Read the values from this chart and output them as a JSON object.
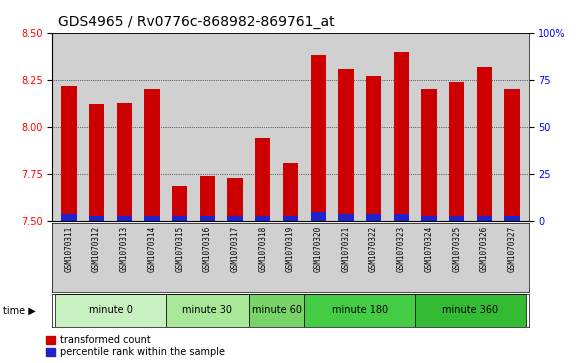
{
  "title": "GDS4965 / Rv0776c-868982-869761_at",
  "samples": [
    "GSM1070311",
    "GSM1070312",
    "GSM1070313",
    "GSM1070314",
    "GSM1070315",
    "GSM1070316",
    "GSM1070317",
    "GSM1070318",
    "GSM1070319",
    "GSM1070320",
    "GSM1070321",
    "GSM1070322",
    "GSM1070323",
    "GSM1070324",
    "GSM1070325",
    "GSM1070326",
    "GSM1070327"
  ],
  "transformed_count": [
    8.22,
    8.12,
    8.13,
    8.2,
    7.69,
    7.74,
    7.73,
    7.94,
    7.81,
    8.38,
    8.31,
    8.27,
    8.4,
    8.2,
    8.24,
    8.32,
    8.2
  ],
  "percentile_rank": [
    4,
    3,
    3,
    3,
    3,
    3,
    3,
    3,
    3,
    5,
    4,
    4,
    4,
    3,
    3,
    3,
    3
  ],
  "ylim_left": [
    7.5,
    8.5
  ],
  "ylim_right": [
    0,
    100
  ],
  "yticks_left": [
    7.5,
    7.75,
    8.0,
    8.25,
    8.5
  ],
  "yticks_right": [
    0,
    25,
    50,
    75,
    100
  ],
  "bar_color_red": "#cc0000",
  "bar_color_blue": "#2222cc",
  "bar_width": 0.55,
  "groups": [
    {
      "label": "minute 0",
      "indices": [
        0,
        1,
        2,
        3
      ],
      "color": "#c8f0c0"
    },
    {
      "label": "minute 30",
      "indices": [
        4,
        5,
        6
      ],
      "color": "#a8e898"
    },
    {
      "label": "minute 60",
      "indices": [
        7,
        8
      ],
      "color": "#78d468"
    },
    {
      "label": "minute 180",
      "indices": [
        9,
        10,
        11,
        12
      ],
      "color": "#44cc44"
    },
    {
      "label": "minute 360",
      "indices": [
        13,
        14,
        15,
        16
      ],
      "color": "#33bb33"
    }
  ],
  "axis_bg": "#d0d0d0",
  "legend_red_label": "transformed count",
  "legend_blue_label": "percentile rank within the sample",
  "title_fontsize": 10,
  "tick_fontsize": 7,
  "sample_fontsize": 5.5,
  "group_fontsize": 7,
  "legend_fontsize": 7
}
